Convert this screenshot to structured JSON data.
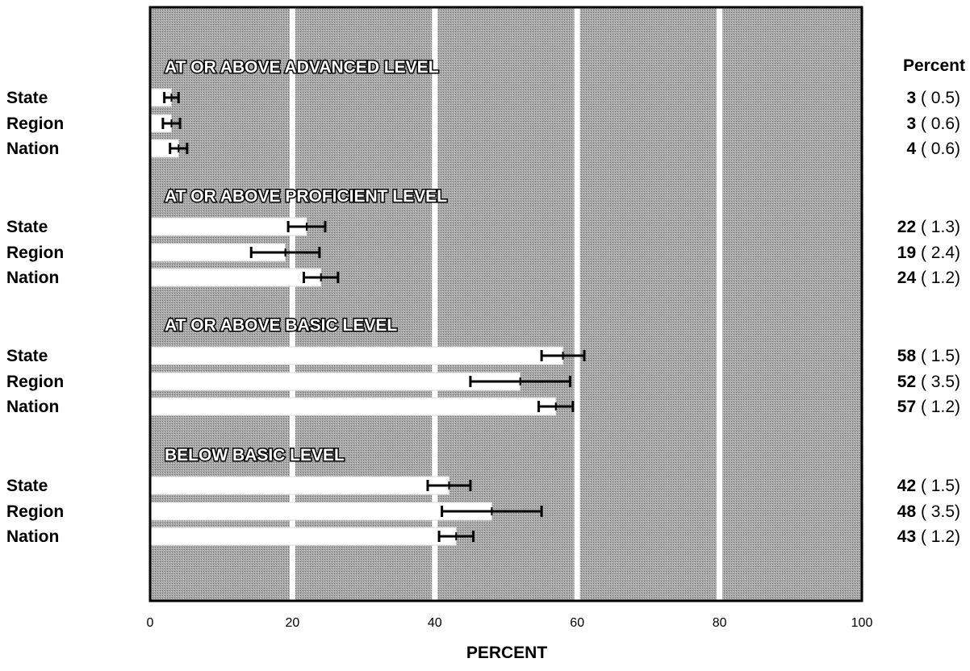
{
  "chart_data": {
    "type": "bar",
    "orientation": "horizontal",
    "xlabel": "PERCENT",
    "xlim": [
      0,
      100
    ],
    "xticks": [
      0,
      20,
      40,
      60,
      80,
      100
    ],
    "value_column_header": "Percent",
    "groups": [
      {
        "title": "AT OR ABOVE ADVANCED LEVEL",
        "rows": [
          {
            "label": "State",
            "value": 3,
            "se": 0.5,
            "value_text": "3",
            "se_text": "( 0.5)"
          },
          {
            "label": "Region",
            "value": 3,
            "se": 0.6,
            "value_text": "3",
            "se_text": "( 0.6)"
          },
          {
            "label": "Nation",
            "value": 4,
            "se": 0.6,
            "value_text": "4",
            "se_text": "( 0.6)"
          }
        ]
      },
      {
        "title": "AT OR ABOVE PROFICIENT LEVEL",
        "rows": [
          {
            "label": "State",
            "value": 22,
            "se": 1.3,
            "value_text": "22",
            "se_text": "( 1.3)"
          },
          {
            "label": "Region",
            "value": 19,
            "se": 2.4,
            "value_text": "19",
            "se_text": "( 2.4)"
          },
          {
            "label": "Nation",
            "value": 24,
            "se": 1.2,
            "value_text": "24",
            "se_text": "( 1.2)"
          }
        ]
      },
      {
        "title": "AT OR ABOVE BASIC LEVEL",
        "rows": [
          {
            "label": "State",
            "value": 58,
            "se": 1.5,
            "value_text": "58",
            "se_text": "( 1.5)"
          },
          {
            "label": "Region",
            "value": 52,
            "se": 3.5,
            "value_text": "52",
            "se_text": "( 3.5)"
          },
          {
            "label": "Nation",
            "value": 57,
            "se": 1.2,
            "value_text": "57",
            "se_text": "( 1.2)"
          }
        ]
      },
      {
        "title": "BELOW BASIC LEVEL",
        "rows": [
          {
            "label": "State",
            "value": 42,
            "se": 1.5,
            "value_text": "42",
            "se_text": "( 1.5)"
          },
          {
            "label": "Region",
            "value": 48,
            "se": 3.5,
            "value_text": "48",
            "se_text": "( 3.5)"
          },
          {
            "label": "Nation",
            "value": 43,
            "se": 1.2,
            "value_text": "43",
            "se_text": "( 1.2)"
          }
        ]
      }
    ],
    "grid": true,
    "colors": {
      "plot_background": "#9a9a9a",
      "bar": "#ffffff",
      "gridline": "#ffffff",
      "error_bar": "#000000"
    }
  }
}
